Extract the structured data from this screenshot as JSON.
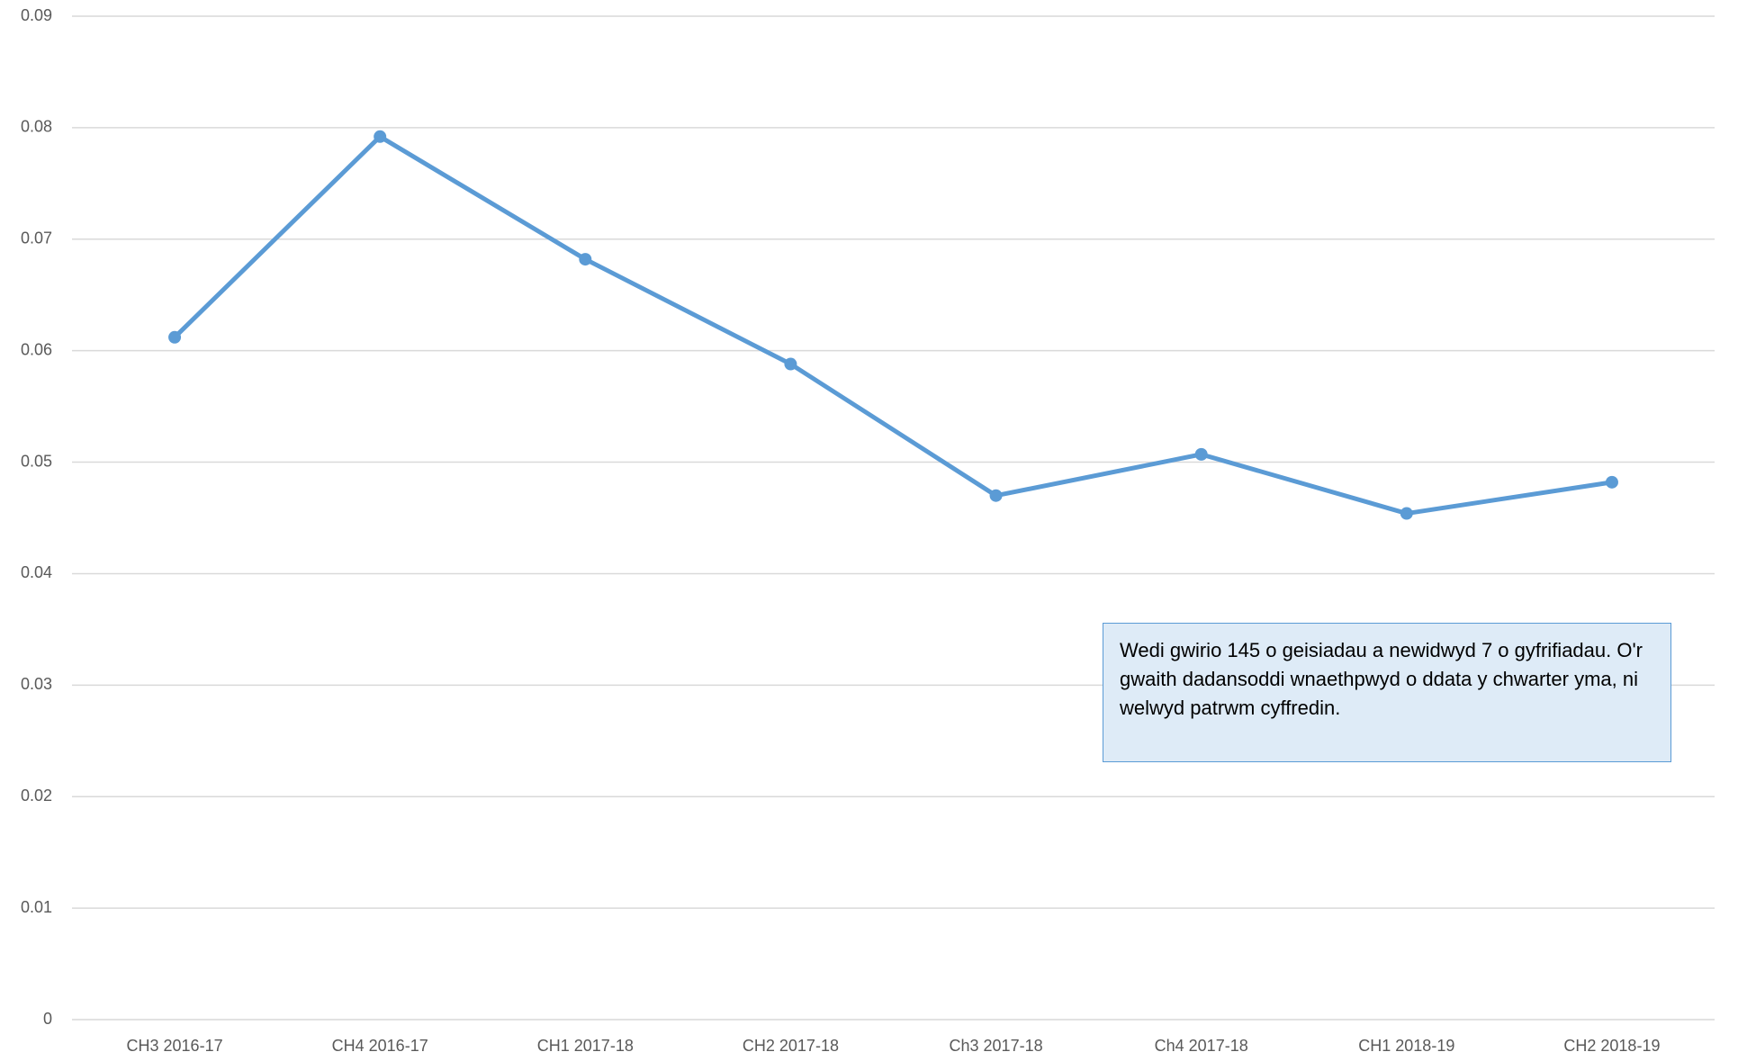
{
  "chart_data": {
    "type": "line",
    "categories": [
      "CH3 2016-17",
      "CH4 2016-17",
      "CH1 2017-18",
      "CH2 2017-18",
      "Ch3 2017-18",
      "Ch4 2017-18",
      "CH1 2018-19",
      "CH2 2018-19"
    ],
    "values": [
      0.0612,
      0.0792,
      0.0682,
      0.0588,
      0.047,
      0.0507,
      0.0454,
      0.0482
    ],
    "color": "#5b9bd5",
    "ylim": [
      0,
      0.09
    ],
    "yticks": [
      0,
      0.01,
      0.02,
      0.03,
      0.04,
      0.05,
      0.06,
      0.07,
      0.08,
      0.09
    ],
    "grid": true,
    "annotation": "Wedi gwirio 145 o geisiadau a newidwyd 7 o gyfrifiadau. O'r gwaith dadansoddi wnaethpwyd o ddata y chwarter yma, ni welwyd patrwm cyffredin."
  }
}
